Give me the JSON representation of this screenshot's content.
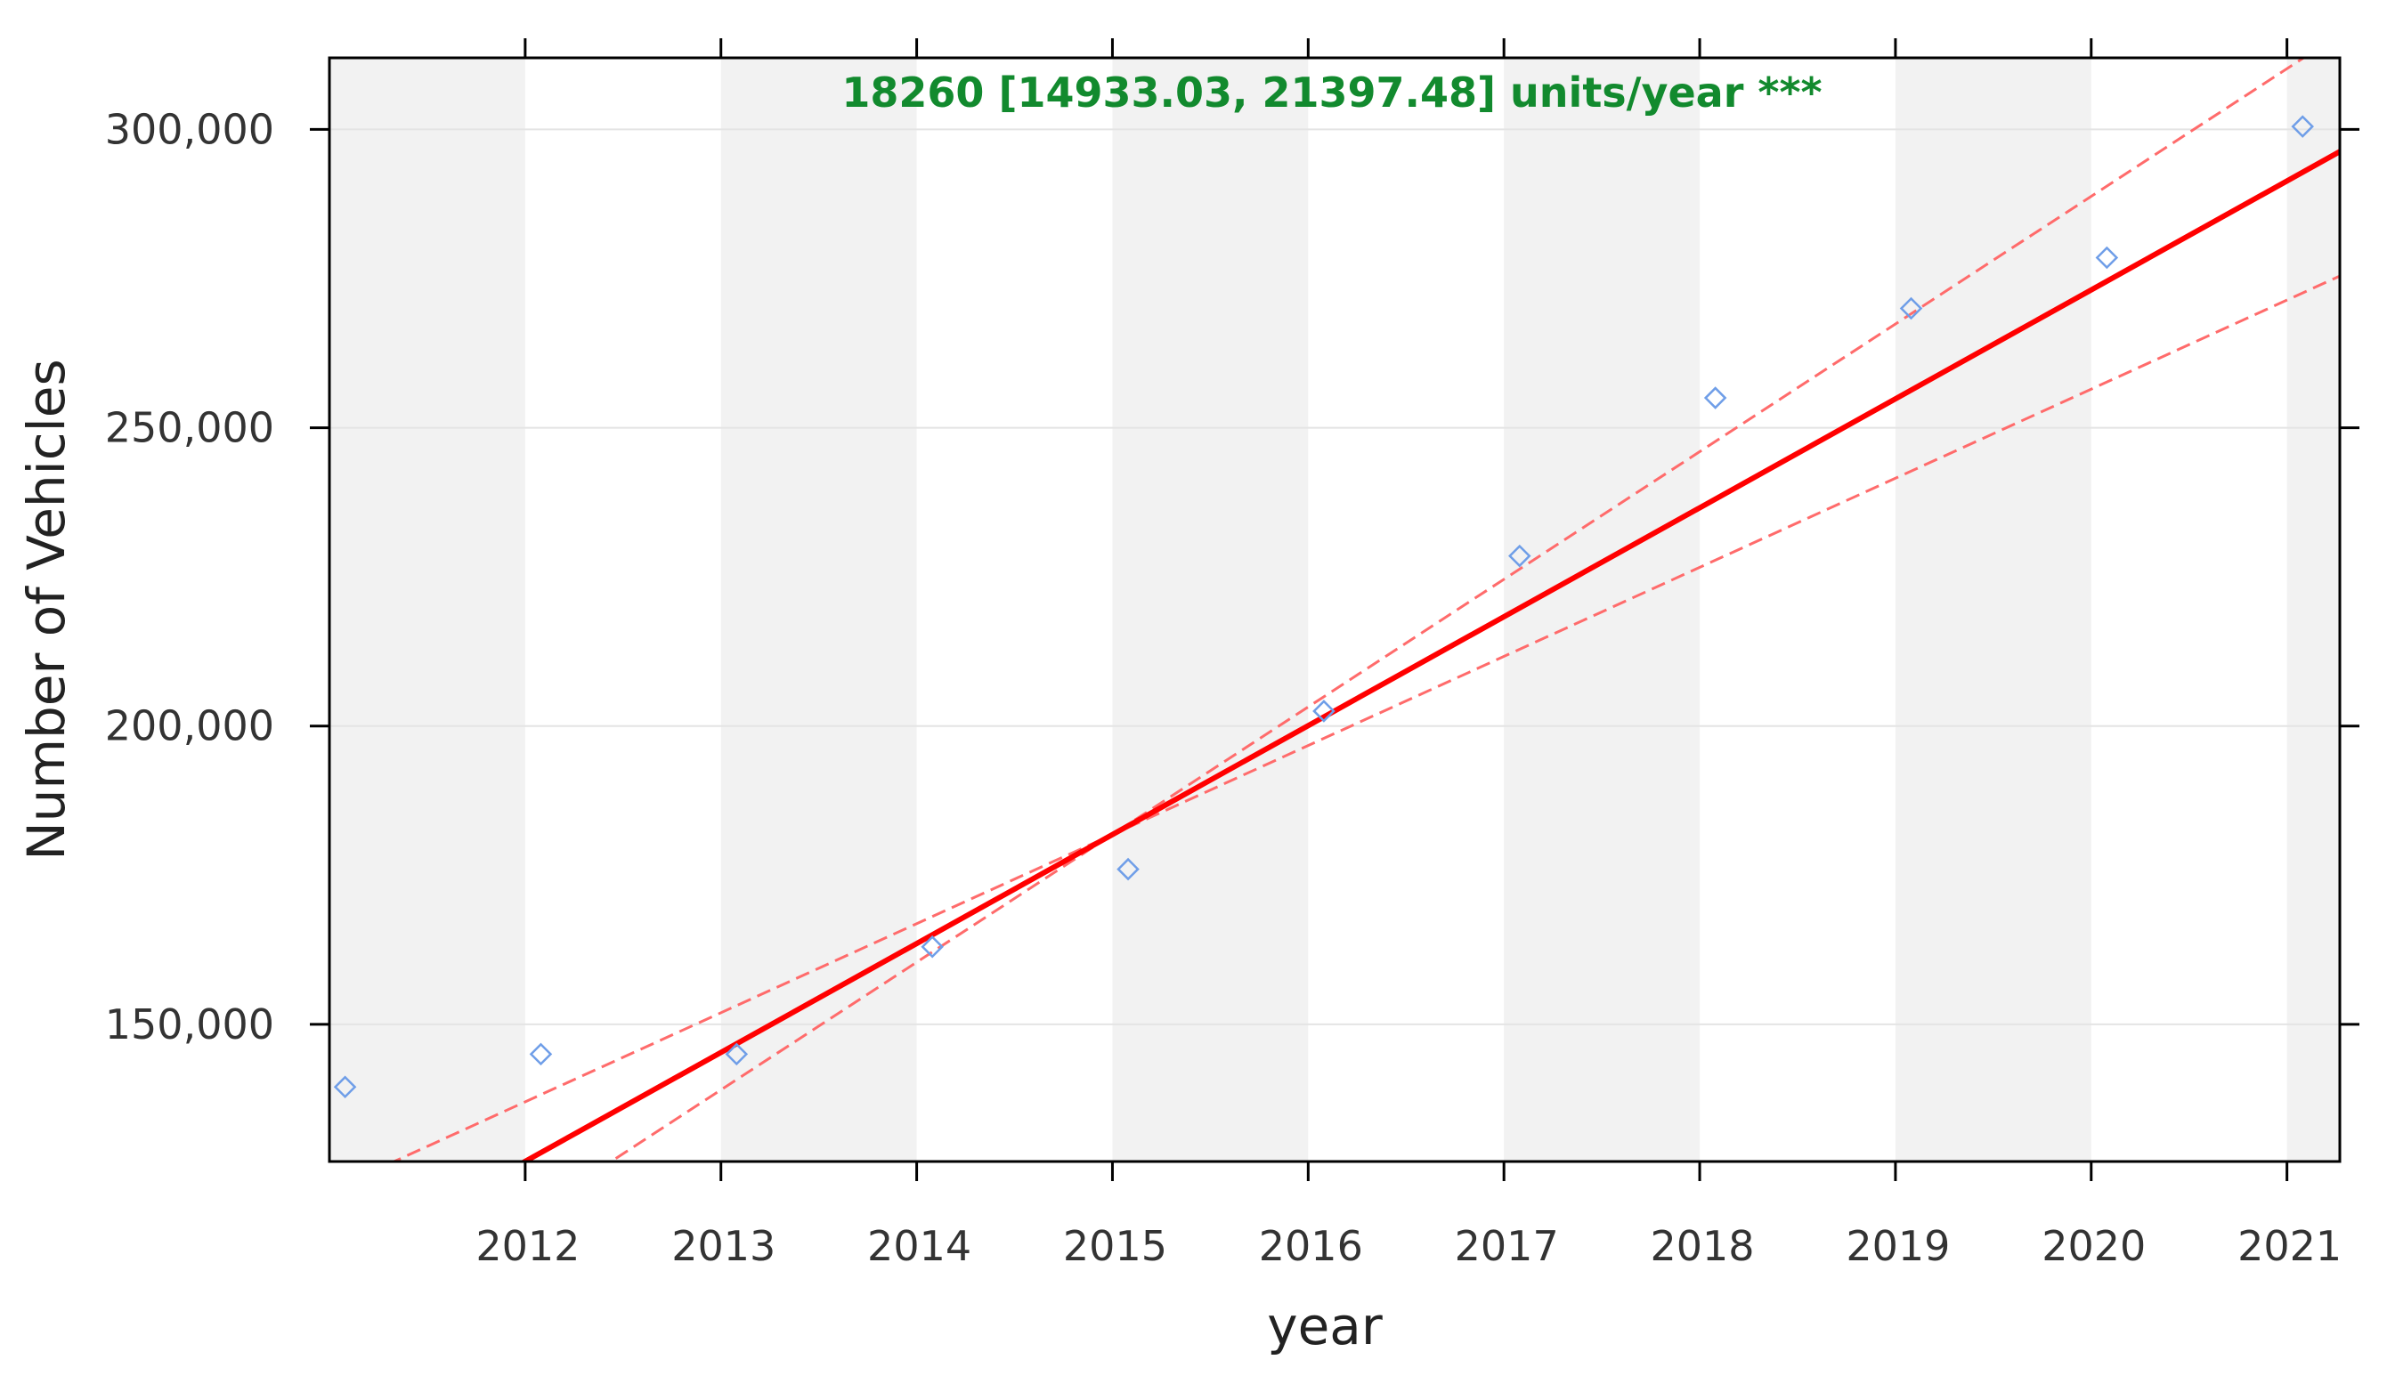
{
  "chart_data": {
    "type": "scatter",
    "title": "",
    "annotation": "18260 [14933.03, 21397.48] units/year ***",
    "xlabel": "year",
    "ylabel": "Number of Vehicles",
    "xlim": [
      2011.0,
      2021.27
    ],
    "ylim": [
      127000,
      312000
    ],
    "x_ticks": [
      2012,
      2013,
      2014,
      2015,
      2016,
      2017,
      2018,
      2019,
      2020,
      2021
    ],
    "y_ticks": [
      150000,
      200000,
      250000,
      300000
    ],
    "y_tick_labels": [
      "150,000",
      "200,000",
      "250,000",
      "300,000"
    ],
    "grid": true,
    "legend": "none",
    "series": [
      {
        "x": [
          2011.08,
          2012.08,
          2013.08,
          2014.08,
          2015.08,
          2016.08,
          2017.08,
          2018.08,
          2019.08,
          2020.08,
          2021.08
        ],
        "y": [
          139500,
          145000,
          145000,
          163000,
          176000,
          202500,
          228500,
          255000,
          270000,
          278500,
          300500
        ]
      }
    ],
    "trend": {
      "slope_per_year": 18260,
      "slope_lower": 14933.03,
      "slope_upper": 21397.48,
      "center_x": 2015.0,
      "center_y": 181800
    },
    "colors": {
      "points": "#6f9ee8",
      "trend": "#ff0000",
      "band": "#ff6b6b",
      "annotation": "#128a2e",
      "stripe": "#f2f2f2",
      "grid": "#e4e4e4",
      "frame": "#000000"
    }
  }
}
